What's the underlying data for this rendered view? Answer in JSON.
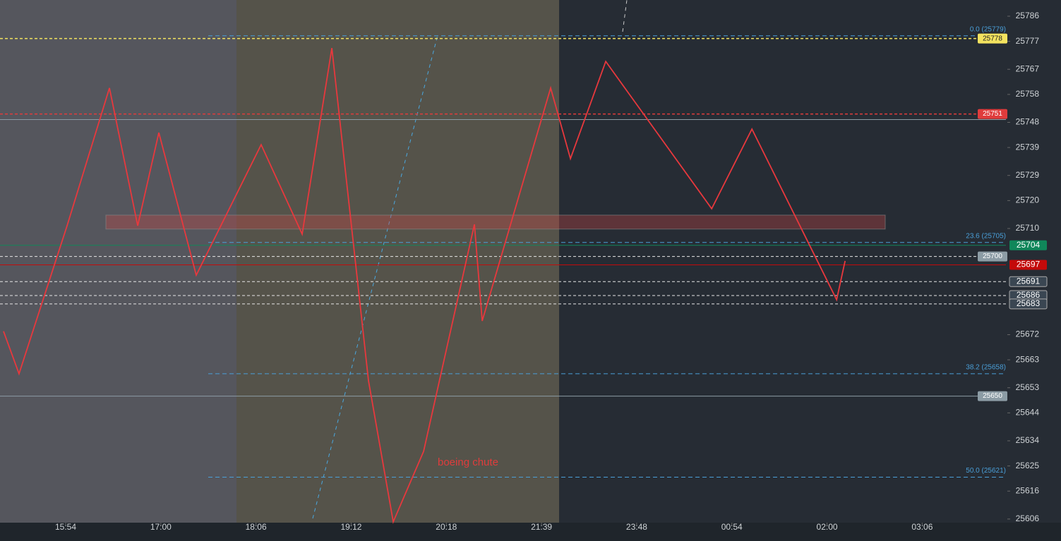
{
  "chart_data": {
    "type": "line",
    "xlim": [
      -0.69,
      9.88
    ],
    "xticks": [
      {
        "value": 0,
        "label": "15:54"
      },
      {
        "value": 1,
        "label": "17:00"
      },
      {
        "value": 2,
        "label": "18:06"
      },
      {
        "value": 3,
        "label": "19:12"
      },
      {
        "value": 4,
        "label": "20:18"
      },
      {
        "value": 5,
        "label": "21:39"
      },
      {
        "value": 6,
        "label": "23:48"
      },
      {
        "value": 7,
        "label": "00:54"
      },
      {
        "value": 8,
        "label": "02:00"
      },
      {
        "value": 9,
        "label": "03:06"
      }
    ],
    "ylim": [
      25604.7,
      25791.8
    ],
    "yticks": [
      25786,
      25777,
      25767,
      25758,
      25748,
      25739,
      25729,
      25720,
      25710,
      25672,
      25663,
      25653,
      25644,
      25634,
      25625,
      25616,
      25606
    ],
    "series": [
      {
        "color": "#e8383d",
        "x": [
          -0.653,
          -0.49,
          0.015,
          0.46,
          0.757,
          0.979,
          1.372,
          2.054,
          2.485,
          2.797,
          3.182,
          3.442,
          3.761,
          4.295,
          4.377,
          5.096,
          5.304,
          5.675,
          6.788,
          7.211,
          8.101,
          8.19
        ],
        "values": [
          25673.2,
          25658.0,
          25711.0,
          25760.3,
          25711.0,
          25744.3,
          25693.3,
          25740.0,
          25708.0,
          25774.6,
          25655.5,
          25605.0,
          25630.2,
          25711.5,
          25676.9,
          25760.3,
          25735.0,
          25769.8,
          25717.1,
          25745.6,
          25684.5,
          25698.4
        ]
      }
    ],
    "levels": [
      {
        "value": 25778,
        "color": "#f3e35f",
        "style": "dashed"
      },
      {
        "value": 25751,
        "color": "#e03c3c",
        "style": "dashed"
      },
      {
        "value": 25650,
        "color": "#8c9ca5",
        "style": "solid"
      },
      {
        "value": 25704,
        "color": "#10875a",
        "style": "solid"
      },
      {
        "value": 25700,
        "color": "#8c9ca5",
        "style": "dashed"
      },
      {
        "value": 25697,
        "color": "#c40a0a",
        "style": "solid"
      },
      {
        "value": 25691,
        "color": "#3a4652",
        "style": "dashed"
      },
      {
        "value": 25686,
        "color": "#3a4652",
        "style": "dashed"
      },
      {
        "value": 25683,
        "color": "#3a4652",
        "style": "dashed"
      }
    ],
    "lines": [
      {
        "value": 25749,
        "color": "#8c9ca5"
      }
    ],
    "fib": [
      {
        "value": 25779,
        "label": "0.0 (25779)"
      },
      {
        "value": 25705,
        "label": "23.6 (25705)"
      },
      {
        "value": 25658,
        "label": "38.2 (25658)"
      },
      {
        "value": 25621,
        "label": "50.0 (25621)"
      }
    ],
    "fib_color": "#4a9fd8",
    "zone": [
      25709.8,
      25714.8
    ],
    "annotation": "boeing chute"
  }
}
